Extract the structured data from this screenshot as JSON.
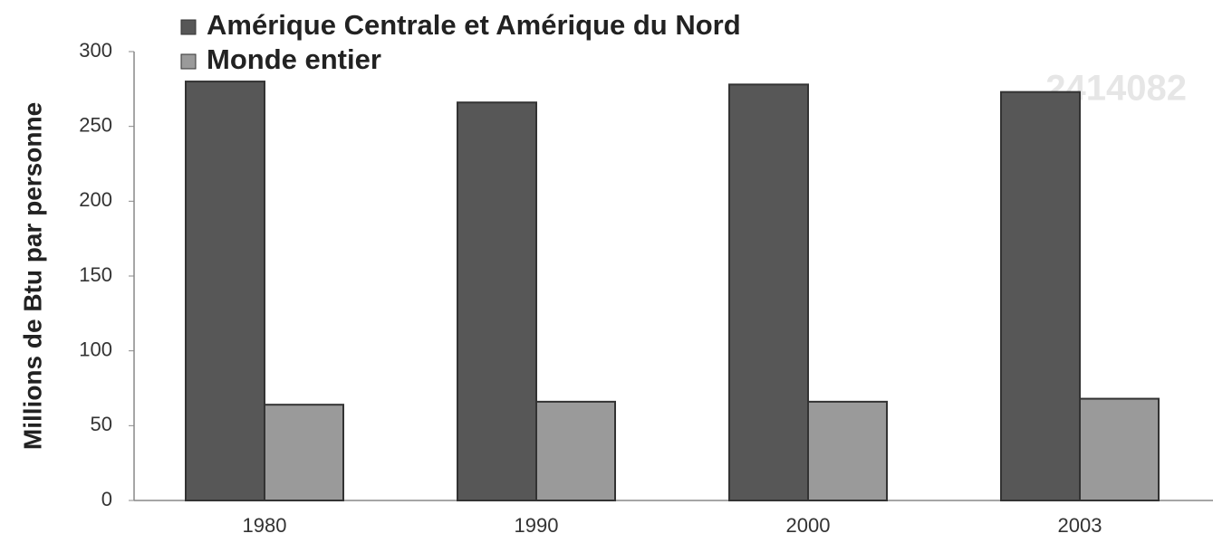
{
  "chart_data": {
    "type": "bar",
    "y_axis_label": "Millions de Btu par personne",
    "watermark": "2414082",
    "categories": [
      "1980",
      "1990",
      "2000",
      "2003"
    ],
    "series": [
      {
        "name": "Amérique Centrale et Amérique du Nord",
        "color": "#575757",
        "values": [
          280,
          266,
          278,
          273
        ]
      },
      {
        "name": "Monde entier",
        "color": "#9a9a9a",
        "values": [
          64,
          66,
          66,
          68
        ]
      }
    ],
    "ylim": [
      0,
      300
    ],
    "yticks": [
      0,
      50,
      100,
      150,
      200,
      250,
      300
    ],
    "grid": false,
    "legend": "top"
  }
}
